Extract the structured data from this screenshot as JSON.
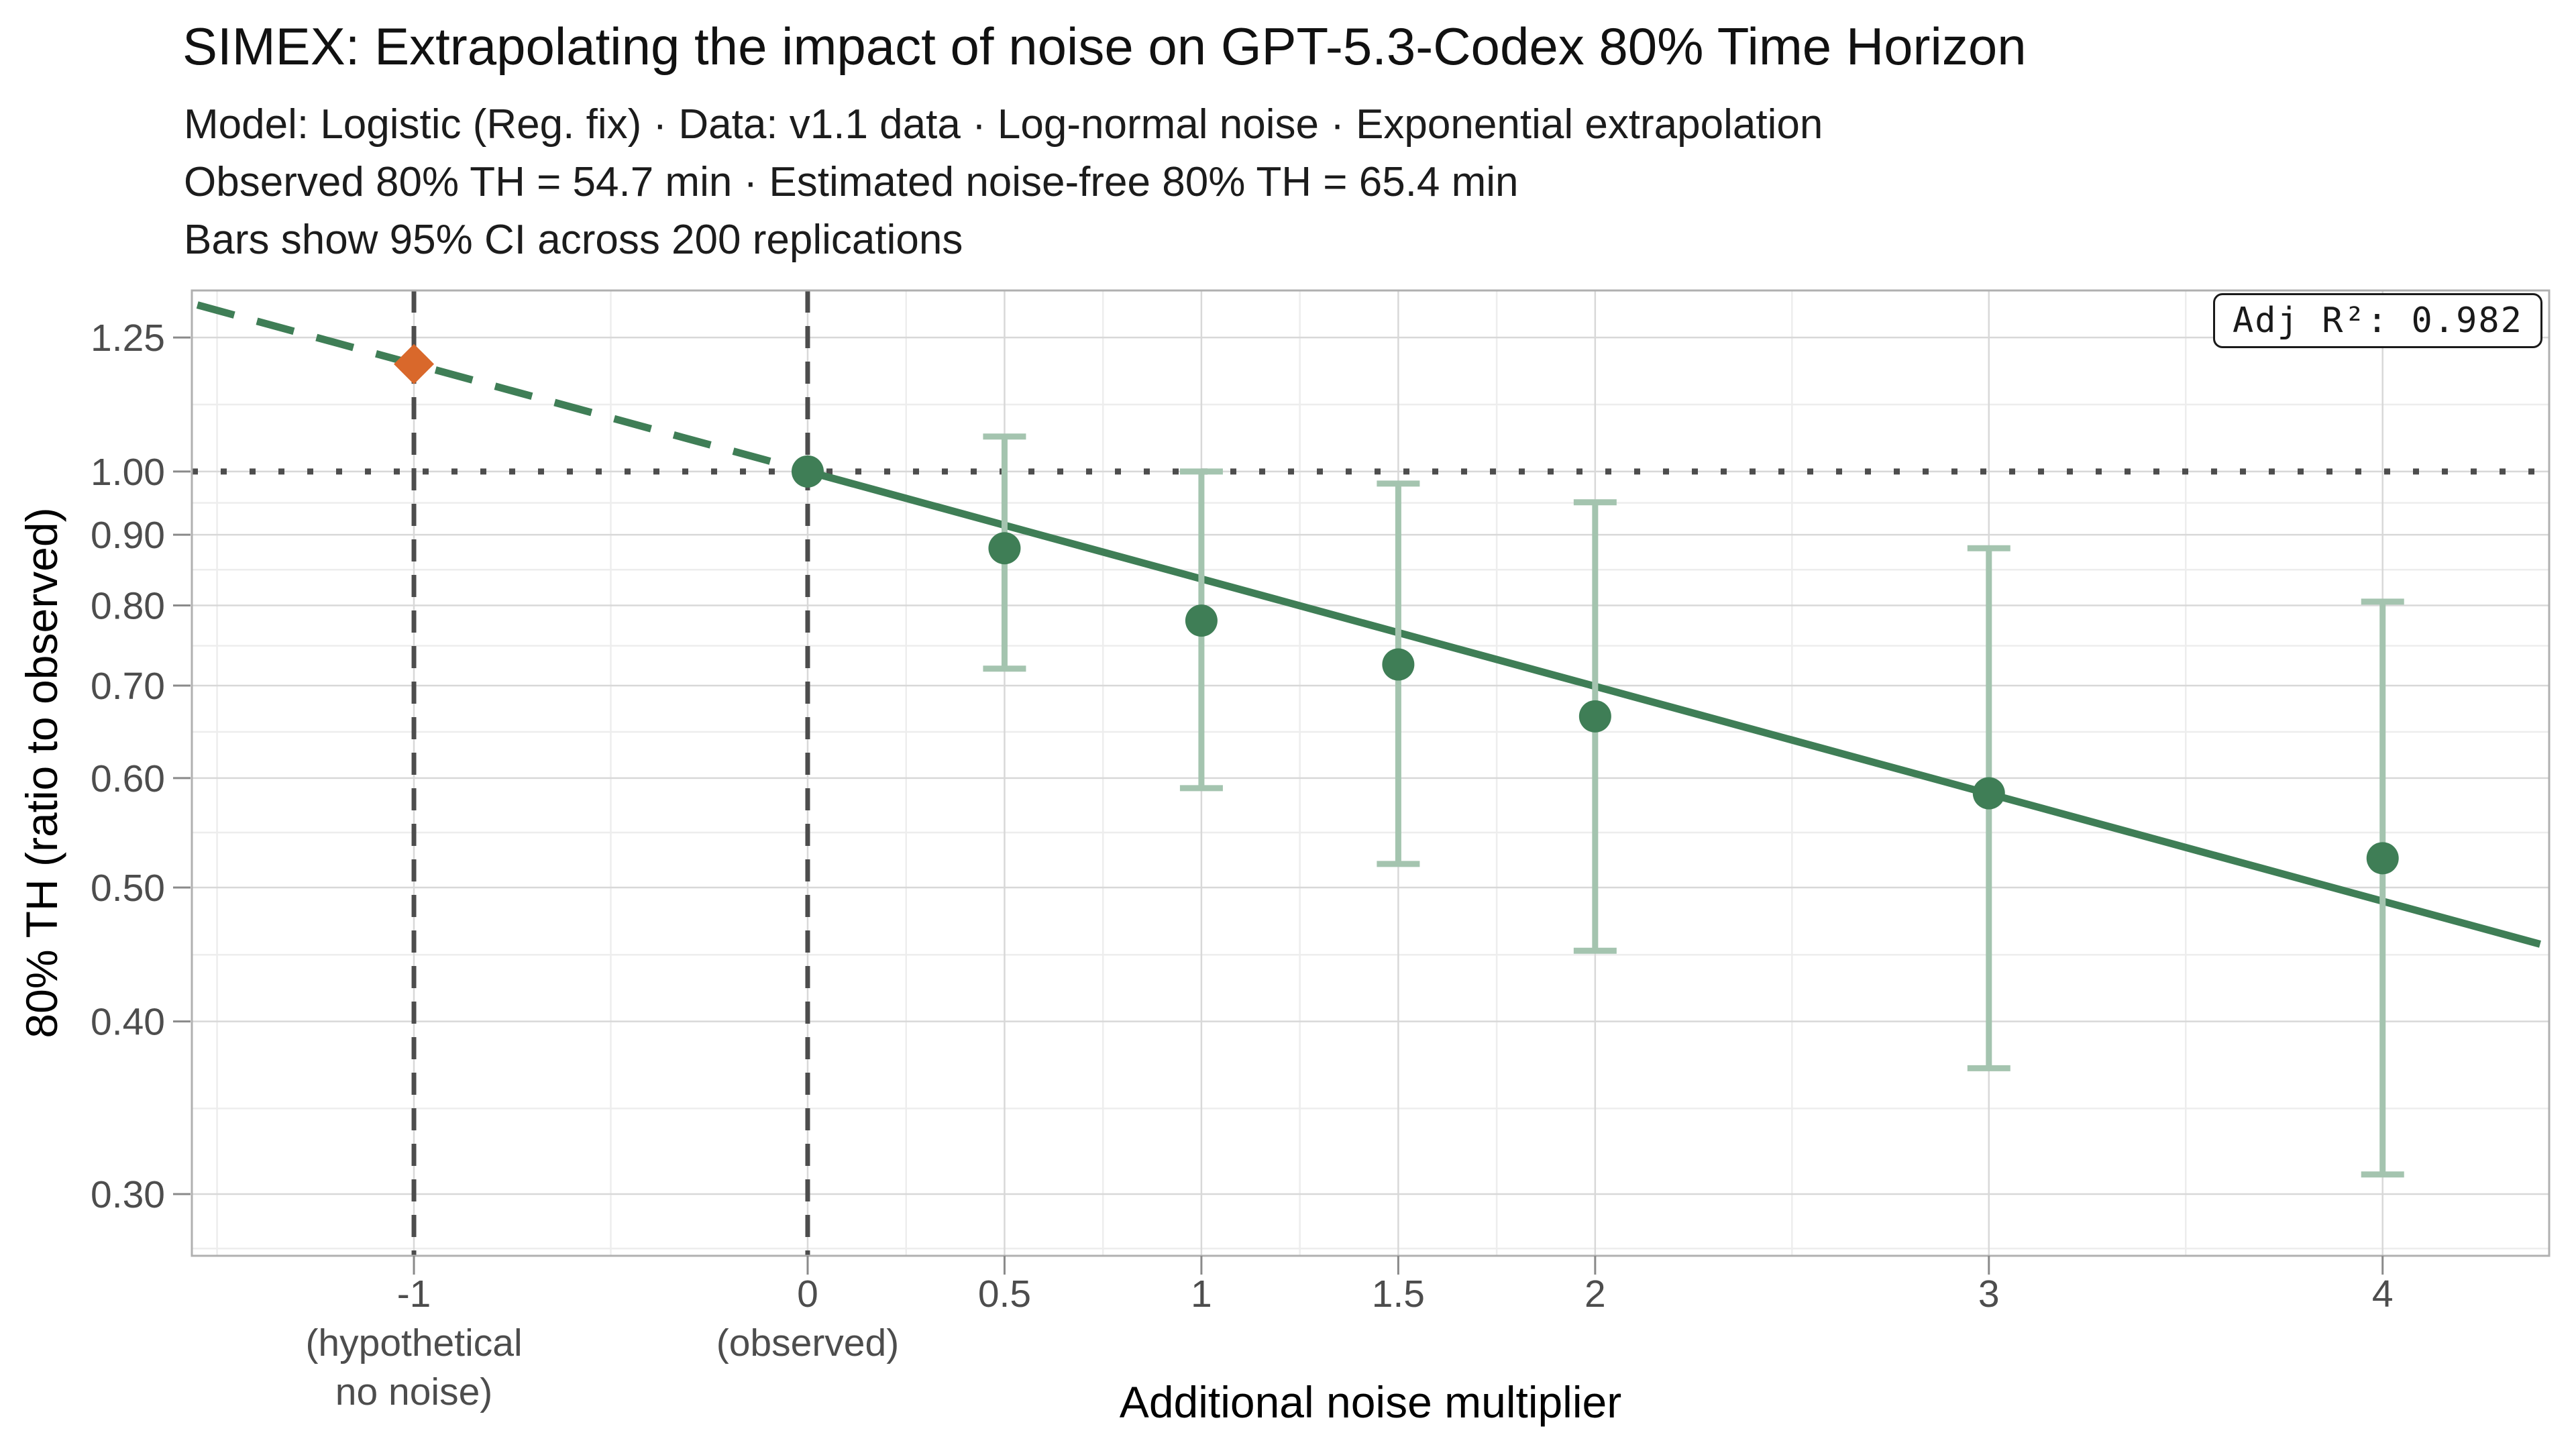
{
  "header": {
    "title": "SIMEX: Extrapolating the impact of noise on GPT-5.3-Codex 80% Time Horizon",
    "subtitle_line1": "Model: Logistic (Reg. fix) · Data: v1.1 data · Log-normal noise · Exponential extrapolation",
    "subtitle_line2": "Observed 80% TH = 54.7 min · Estimated noise-free 80% TH = 65.4 min",
    "subtitle_line3": "Bars show 95% CI across 200 replications"
  },
  "annotation": {
    "adj_r2_label": "Adj R²: 0.982"
  },
  "chart_data": {
    "type": "scatter",
    "title": "SIMEX: Extrapolating the impact of noise on GPT-5.3-Codex 80% Time Horizon",
    "xlabel": "Additional noise multiplier",
    "ylabel": "80% TH (ratio to observed)",
    "x_scale": "linear",
    "y_scale": "log10",
    "x_domain": [
      -1.564,
      4.423
    ],
    "y_domain": [
      0.2707,
      1.352
    ],
    "grid": true,
    "legend": "none",
    "x_ticks": [
      {
        "value": -1,
        "label": "-1",
        "sublabels": [
          "(hypothetical",
          "no noise)"
        ]
      },
      {
        "value": 0,
        "label": "0",
        "sublabels": [
          "(observed)"
        ]
      },
      {
        "value": 0.5,
        "label": "0.5",
        "sublabels": []
      },
      {
        "value": 1,
        "label": "1",
        "sublabels": []
      },
      {
        "value": 1.5,
        "label": "1.5",
        "sublabels": []
      },
      {
        "value": 2,
        "label": "2",
        "sublabels": []
      },
      {
        "value": 3,
        "label": "3",
        "sublabels": []
      },
      {
        "value": 4,
        "label": "4",
        "sublabels": []
      }
    ],
    "x_minor": [
      -1.5,
      -0.5,
      0.25,
      0.75,
      1.25,
      1.75,
      2.5,
      3.5
    ],
    "y_ticks": [
      {
        "value": 1.25,
        "label": "1.25"
      },
      {
        "value": 1.0,
        "label": "1.00"
      },
      {
        "value": 0.9,
        "label": "0.90"
      },
      {
        "value": 0.8,
        "label": "0.80"
      },
      {
        "value": 0.7,
        "label": "0.70"
      },
      {
        "value": 0.6,
        "label": "0.60"
      },
      {
        "value": 0.5,
        "label": "0.50"
      },
      {
        "value": 0.4,
        "label": "0.40"
      },
      {
        "value": 0.3,
        "label": "0.30"
      }
    ],
    "y_minor": [
      1.118,
      0.949,
      0.849,
      0.748,
      0.648,
      0.548,
      0.447,
      0.346,
      0.274
    ],
    "simex_points": [
      {
        "x": 0,
        "y": 1.0,
        "ci_low": null,
        "ci_high": null,
        "note": "observed"
      },
      {
        "x": 0.5,
        "y": 0.88,
        "ci_low": 0.72,
        "ci_high": 1.06
      },
      {
        "x": 1,
        "y": 0.78,
        "ci_low": 0.59,
        "ci_high": 1.0
      },
      {
        "x": 1.5,
        "y": 0.725,
        "ci_low": 0.52,
        "ci_high": 0.98
      },
      {
        "x": 2,
        "y": 0.665,
        "ci_low": 0.45,
        "ci_high": 0.95
      },
      {
        "x": 3,
        "y": 0.585,
        "ci_low": 0.37,
        "ci_high": 0.88
      },
      {
        "x": 4,
        "y": 0.525,
        "ci_low": 0.31,
        "ci_high": 0.805
      }
    ],
    "extrapolated_point": {
      "x": -1,
      "y": 1.196,
      "marker": "diamond",
      "meaning": "estimated noise-free ratio"
    },
    "trend_line": {
      "y_at_xm1": 1.196,
      "y_at_x0": 1.0,
      "solid_x": [
        0,
        4.4
      ],
      "dashed_x": [
        -1.55,
        0
      ]
    },
    "reference_lines": {
      "hline_y": 1.0,
      "vlines_x": [
        -1,
        0
      ]
    }
  },
  "colors": {
    "green": "#3F7E56",
    "green_light": "#A4C4AF",
    "orange": "#D9682B",
    "guide_gray": "#4D4D4D",
    "grid_major": "#D8D8D8",
    "grid_minor": "#EDEDED",
    "panel_border": "#B0B0B0",
    "tick_mark": "#8A8A8A",
    "tick_text": "#4D4D4D"
  }
}
